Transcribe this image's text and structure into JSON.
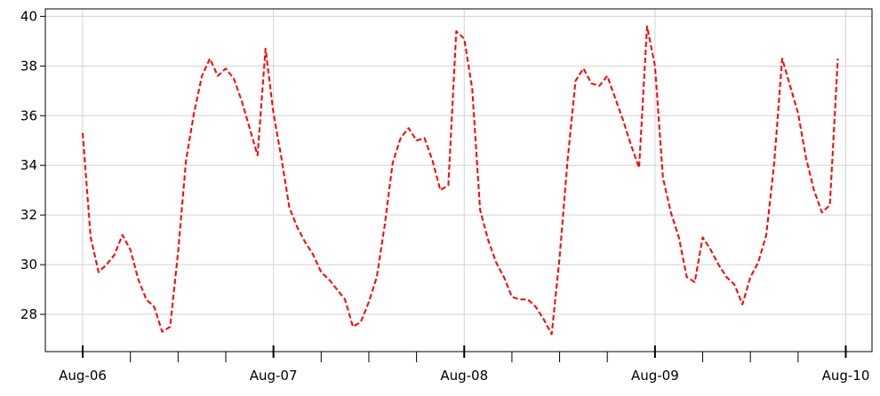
{
  "chart_data": {
    "type": "line",
    "title": "",
    "xlabel": "",
    "ylabel": "",
    "x_tick_labels": [
      "Aug-06",
      "Aug-07",
      "Aug-08",
      "Aug-09",
      "Aug-10"
    ],
    "x_tick_values_hours": [
      0,
      24,
      48,
      72,
      96
    ],
    "x_minor_tick_step_hours": 6,
    "xlim_hours": [
      -4.7,
      99.3
    ],
    "y_tick_labels": [
      "28",
      "30",
      "32",
      "34",
      "36",
      "38",
      "40"
    ],
    "y_ticks": [
      28,
      30,
      32,
      34,
      36,
      38,
      40
    ],
    "ylim": [
      26.5,
      40.3
    ],
    "grid": true,
    "line_color": "#ff0000",
    "line_style": "dashed",
    "series": [
      {
        "name": "",
        "x_hours": [
          0,
          1,
          2,
          3,
          4,
          5,
          6,
          7,
          8,
          9,
          10,
          11,
          12,
          13,
          14,
          15,
          16,
          17,
          18,
          19,
          20,
          21,
          22,
          23,
          24,
          25,
          26,
          27,
          28,
          29,
          30,
          31,
          32,
          33,
          34,
          35,
          36,
          37,
          38,
          39,
          40,
          41,
          42,
          43,
          44,
          45,
          46,
          47,
          48,
          49,
          50,
          51,
          52,
          53,
          54,
          55,
          56,
          57,
          58,
          59,
          60,
          61,
          62,
          63,
          64,
          65,
          66,
          67,
          68,
          69,
          70,
          71,
          72,
          73,
          74,
          75,
          76,
          77,
          78,
          79,
          80,
          81,
          82,
          83,
          84,
          85,
          86,
          87,
          88,
          89,
          90,
          91,
          92,
          93,
          94,
          95
        ],
        "values": [
          35.3,
          31.1,
          29.7,
          30.0,
          30.4,
          31.2,
          30.6,
          29.4,
          28.6,
          28.3,
          27.3,
          27.5,
          30.5,
          34.2,
          36.1,
          37.6,
          38.3,
          37.6,
          37.9,
          37.5,
          36.6,
          35.5,
          34.4,
          38.7,
          36.1,
          34.3,
          32.3,
          31.5,
          30.9,
          30.4,
          29.7,
          29.4,
          29.0,
          28.6,
          27.5,
          27.7,
          28.5,
          29.5,
          31.6,
          34.1,
          35.1,
          35.5,
          35.0,
          35.1,
          34.2,
          33.0,
          33.2,
          39.4,
          39.1,
          37.1,
          32.2,
          31.0,
          30.1,
          29.5,
          28.7,
          28.6,
          28.6,
          28.3,
          27.8,
          27.2,
          30.3,
          34.2,
          37.4,
          37.9,
          37.3,
          37.2,
          37.6,
          36.7,
          35.8,
          34.8,
          33.9,
          39.6,
          38.0,
          33.5,
          32.1,
          31.1,
          29.5,
          29.3,
          31.1,
          30.6,
          30.0,
          29.5,
          29.2,
          28.4,
          29.5,
          30.1,
          31.2,
          34.1,
          38.3,
          37.2,
          36.1,
          34.3,
          33.0,
          32.1,
          32.4,
          38.3
        ]
      }
    ]
  }
}
